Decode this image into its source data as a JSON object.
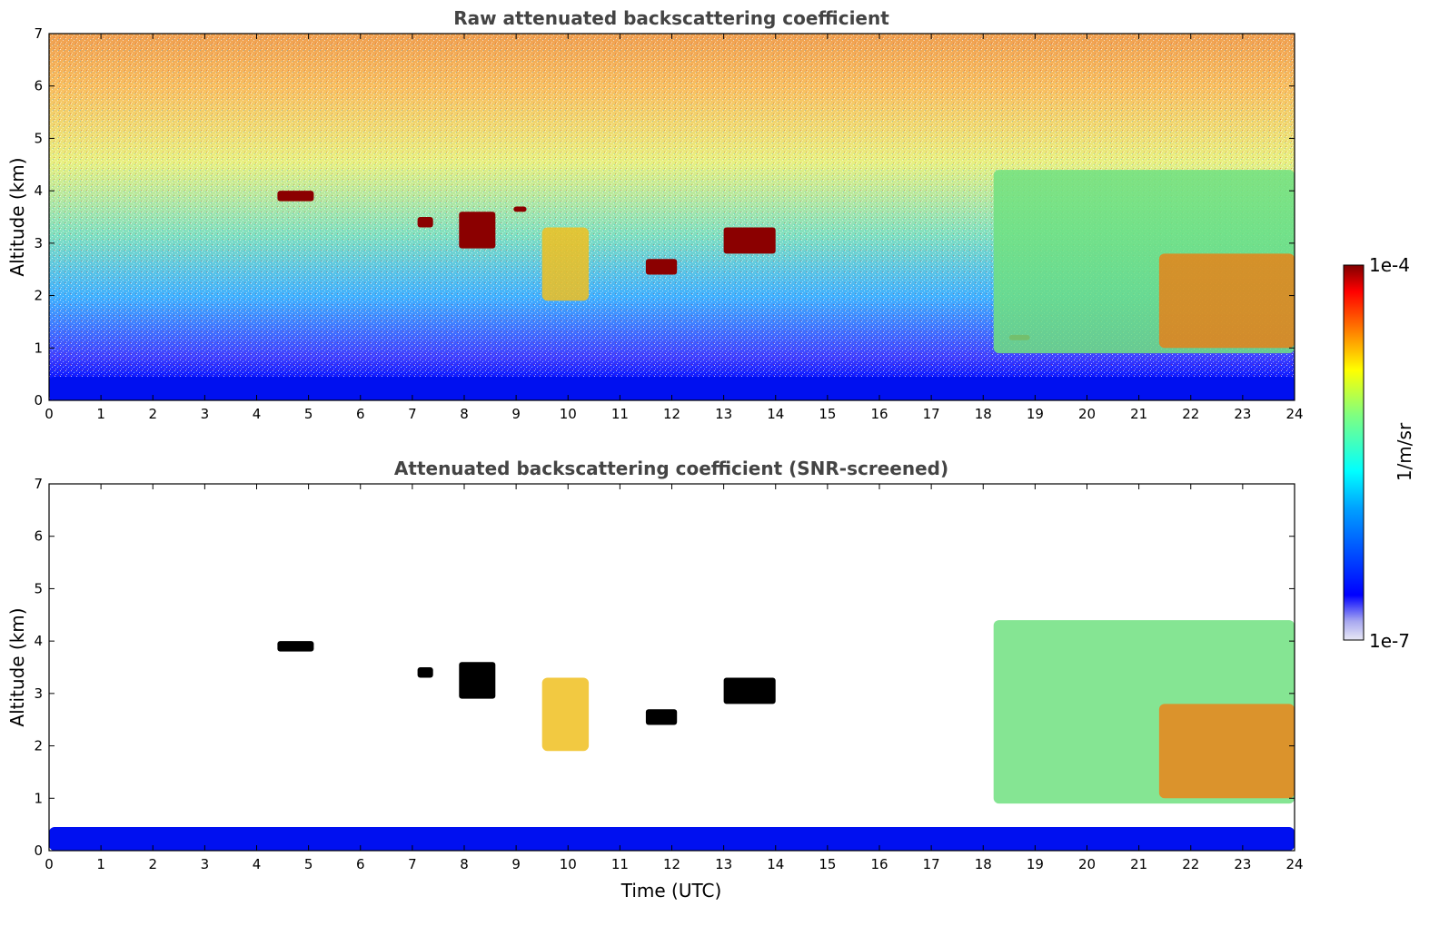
{
  "chart_data": [
    {
      "type": "heatmap",
      "title": "Raw attenuated backscattering coefficient",
      "xlabel": "",
      "ylabel": "Altitude (km)",
      "xlim": [
        0,
        24
      ],
      "ylim": [
        0,
        7
      ],
      "xticks": [
        "0",
        "1",
        "2",
        "3",
        "4",
        "5",
        "6",
        "7",
        "8",
        "9",
        "10",
        "11",
        "12",
        "13",
        "14",
        "15",
        "16",
        "17",
        "18",
        "19",
        "20",
        "21",
        "22",
        "23",
        "24"
      ],
      "yticks": [
        "0",
        "1",
        "2",
        "3",
        "4",
        "5",
        "6",
        "7"
      ],
      "features": [
        {
          "kind": "surface-layer",
          "x": [
            0,
            24
          ],
          "y": [
            0,
            0.45
          ],
          "level": "low"
        },
        {
          "kind": "noise-background",
          "x": [
            0,
            24
          ],
          "y": [
            0.45,
            7
          ],
          "level": "increasing-with-altitude"
        },
        {
          "kind": "thin-layer",
          "x": [
            4.4,
            5.1
          ],
          "y": [
            3.8,
            4.0
          ],
          "level": "max"
        },
        {
          "kind": "thin-layer",
          "x": [
            7.1,
            7.4
          ],
          "y": [
            3.3,
            3.5
          ],
          "level": "max"
        },
        {
          "kind": "thin-layer",
          "x": [
            7.9,
            8.6
          ],
          "y": [
            2.9,
            3.6
          ],
          "level": "max"
        },
        {
          "kind": "thin-layer",
          "x": [
            8.95,
            9.2
          ],
          "y": [
            3.6,
            3.7
          ],
          "level": "max"
        },
        {
          "kind": "aerosol-plume",
          "x": [
            9.5,
            10.4
          ],
          "y": [
            1.9,
            3.3
          ],
          "level": "medium-high"
        },
        {
          "kind": "thin-layer",
          "x": [
            11.5,
            12.1
          ],
          "y": [
            2.4,
            2.7
          ],
          "level": "max"
        },
        {
          "kind": "thin-layer",
          "x": [
            13.0,
            14.0
          ],
          "y": [
            2.8,
            3.3
          ],
          "level": "max"
        },
        {
          "kind": "thin-layer",
          "x": [
            18.5,
            18.9
          ],
          "y": [
            1.15,
            1.25
          ],
          "level": "max"
        },
        {
          "kind": "cloud-system",
          "x": [
            18.2,
            24
          ],
          "y": [
            0.9,
            4.4
          ],
          "level": "medium-high"
        }
      ]
    },
    {
      "type": "heatmap",
      "title": "Attenuated backscattering coefficient (SNR-screened)",
      "xlabel": "Time (UTC)",
      "ylabel": "Altitude (km)",
      "xlim": [
        0,
        24
      ],
      "ylim": [
        0,
        7
      ],
      "xticks": [
        "0",
        "1",
        "2",
        "3",
        "4",
        "5",
        "6",
        "7",
        "8",
        "9",
        "10",
        "11",
        "12",
        "13",
        "14",
        "15",
        "16",
        "17",
        "18",
        "19",
        "20",
        "21",
        "22",
        "23",
        "24"
      ],
      "yticks": [
        "0",
        "1",
        "2",
        "3",
        "4",
        "5",
        "6",
        "7"
      ],
      "features": [
        {
          "kind": "surface-layer",
          "x": [
            0,
            24
          ],
          "y": [
            0,
            0.45
          ],
          "level": "low"
        },
        {
          "kind": "thin-layer",
          "x": [
            4.4,
            5.1
          ],
          "y": [
            3.8,
            4.0
          ],
          "level": "saturated"
        },
        {
          "kind": "thin-layer",
          "x": [
            7.1,
            7.4
          ],
          "y": [
            3.3,
            3.5
          ],
          "level": "saturated"
        },
        {
          "kind": "thin-layer",
          "x": [
            7.9,
            8.6
          ],
          "y": [
            2.9,
            3.6
          ],
          "level": "saturated"
        },
        {
          "kind": "aerosol-plume",
          "x": [
            9.5,
            10.4
          ],
          "y": [
            1.9,
            3.3
          ],
          "level": "medium-high"
        },
        {
          "kind": "thin-layer",
          "x": [
            11.5,
            12.1
          ],
          "y": [
            2.4,
            2.7
          ],
          "level": "saturated"
        },
        {
          "kind": "thin-layer",
          "x": [
            13.0,
            14.0
          ],
          "y": [
            2.8,
            3.3
          ],
          "level": "saturated"
        },
        {
          "kind": "cloud-system",
          "x": [
            18.2,
            24
          ],
          "y": [
            0.9,
            4.4
          ],
          "level": "medium-high"
        }
      ]
    }
  ],
  "colorbar": {
    "label": "1/m/sr",
    "max_label": "1e-4",
    "min_label": "1e-7",
    "scale": "log",
    "colormap": "jet",
    "colors": [
      "#e8e8f5",
      "#0000ff",
      "#00ffff",
      "#ffff00",
      "#ff0000",
      "#800000"
    ]
  }
}
